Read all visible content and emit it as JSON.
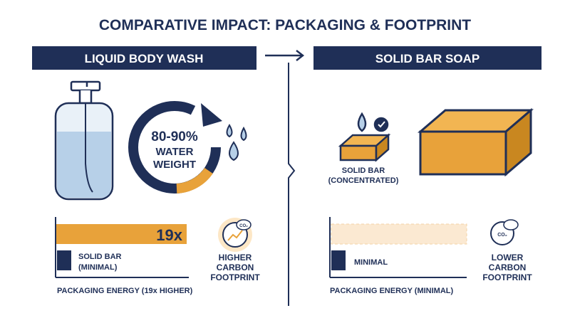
{
  "header": {
    "title": "COMPARATIVE IMPACT: PACKAGING & FOOTPRINT"
  },
  "left": {
    "header": "LIQUID BODY WASH",
    "stat": [
      "80-90%",
      "WATER",
      "WEIGHT"
    ],
    "chart": {
      "bar_label": "19x",
      "minor_label": [
        "SOLID BAR",
        "(MINIMAL)"
      ],
      "axis_label": "PACKAGING ENERGY (19x HIGHER)"
    },
    "footprint": {
      "icon_label": "CO₂",
      "lines": [
        "HIGHER",
        "CARBON",
        "FOOTPRINT"
      ]
    }
  },
  "right": {
    "header": "SOLID BAR SOAP",
    "product_label": [
      "SOLID BAR",
      "(CONCENTRATED)"
    ],
    "chart": {
      "minor_label": "MINIMAL",
      "axis_label": "PACKAGING ENERGY (MINIMAL)"
    },
    "footprint": {
      "icon_label": "CO₂",
      "lines": [
        "LOWER",
        "CARBON",
        "FOOTPRINT"
      ]
    }
  }
}
